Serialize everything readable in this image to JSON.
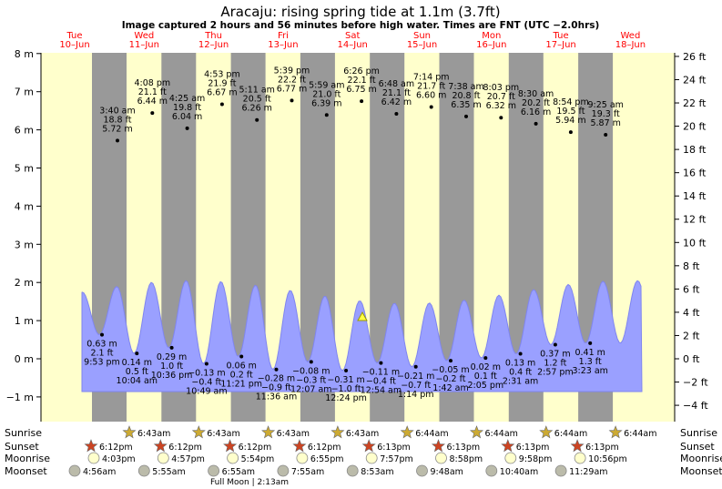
{
  "title": "Aracaju: rising  spring tide at 1.1m (3.7ft)",
  "subtitle": "Image captured 2 hours and 56 minutes before high water. Times are FNT (UTC −2.0hrs)",
  "colors": {
    "day": "#ffffcc",
    "night": "#999999",
    "tide": "#9aa0ff",
    "tide_edge": "#7f85f0",
    "day_label": "#ff0000",
    "current_marker": "#ffff44",
    "sun_star": "#ccaa33",
    "sunset_star": "#cc4422",
    "moonrise": "#ffffcc",
    "moonset": "#bbbbaa"
  },
  "chart_data": {
    "type": "area",
    "ylim_m": [
      -1.0,
      8.0
    ],
    "ylim_ft": [
      -4,
      26
    ],
    "left_ticks_m": [
      -1,
      0,
      1,
      2,
      3,
      4,
      5,
      6,
      7,
      8
    ],
    "right_ticks_ft": [
      -4,
      -2,
      0,
      2,
      4,
      6,
      8,
      10,
      12,
      14,
      16,
      18,
      20,
      22,
      24,
      26
    ],
    "unit_m": "m",
    "unit_ft": "ft",
    "days": [
      {
        "dow": "Tue",
        "date": "10–Jun"
      },
      {
        "dow": "Wed",
        "date": "11–Jun"
      },
      {
        "dow": "Thu",
        "date": "12–Jun"
      },
      {
        "dow": "Fri",
        "date": "13–Jun"
      },
      {
        "dow": "Sat",
        "date": "14–Jun"
      },
      {
        "dow": "Sun",
        "date": "15–Jun"
      },
      {
        "dow": "Mon",
        "date": "16–Jun"
      },
      {
        "dow": "Tue",
        "date": "17–Jun"
      },
      {
        "dow": "Wed",
        "date": "18–Jun"
      }
    ],
    "high_tides": [
      {
        "time": "3:40 am",
        "ft": "18.8 ft",
        "m": "5.72 m",
        "value": 5.72
      },
      {
        "time": "4:08 pm",
        "ft": "21.1 ft",
        "m": "6.44 m",
        "value": 6.44
      },
      {
        "time": "4:25 am",
        "ft": "19.8 ft",
        "m": "6.04 m",
        "value": 6.04
      },
      {
        "time": "4:53 pm",
        "ft": "21.9 ft",
        "m": "6.67 m",
        "value": 6.67
      },
      {
        "time": "5:11 am",
        "ft": "20.5 ft",
        "m": "6.26 m",
        "value": 6.26
      },
      {
        "time": "5:39 pm",
        "ft": "22.2 ft",
        "m": "6.77 m",
        "value": 6.77
      },
      {
        "time": "5:59 am",
        "ft": "21.0 ft",
        "m": "6.39 m",
        "value": 6.39
      },
      {
        "time": "6:26 pm",
        "ft": "22.1 ft",
        "m": "6.75 m",
        "value": 6.75
      },
      {
        "time": "6:48 am",
        "ft": "21.1 ft",
        "m": "6.42 m",
        "value": 6.42
      },
      {
        "time": "7:14 pm",
        "ft": "21.7 ft",
        "m": "6.60 m",
        "value": 6.6
      },
      {
        "time": "7:38 am",
        "ft": "20.8 ft",
        "m": "6.35 m",
        "value": 6.35
      },
      {
        "time": "8:03 pm",
        "ft": "20.7 ft",
        "m": "6.32 m",
        "value": 6.32
      },
      {
        "time": "8:30 am",
        "ft": "20.2 ft",
        "m": "6.16 m",
        "value": 6.16
      },
      {
        "time": "8:54 pm",
        "ft": "19.5 ft",
        "m": "5.94 m",
        "value": 5.94
      },
      {
        "time": "9:25 am",
        "ft": "19.3 ft",
        "m": "5.87 m",
        "value": 5.87
      }
    ],
    "low_tides": [
      {
        "m": "0.63 m",
        "ft": "2.1 ft",
        "time": "9:53 pm",
        "value": 0.63
      },
      {
        "m": "0.14 m",
        "ft": "0.5 ft",
        "time": "10:04 am",
        "value": 0.14
      },
      {
        "m": "0.29 m",
        "ft": "1.0 ft",
        "time": "10:36 pm",
        "value": 0.29
      },
      {
        "m": "−0.13 m",
        "ft": "−0.4 ft",
        "time": "10:49 am",
        "value": -0.13
      },
      {
        "m": "0.06 m",
        "ft": "0.2 ft",
        "time": "11:21 pm",
        "value": 0.06
      },
      {
        "m": "−0.28 m",
        "ft": "−0.9 ft",
        "time": "11:36 am",
        "value": -0.28
      },
      {
        "m": "−0.08 m",
        "ft": "−0.3 ft",
        "time": "12:07 am",
        "value": -0.08
      },
      {
        "m": "−0.31 m",
        "ft": "−1.0 ft",
        "time": "12:24 pm",
        "value": -0.31
      },
      {
        "m": "−0.11 m",
        "ft": "−0.4 ft",
        "time": "12:54 am",
        "value": -0.11
      },
      {
        "m": "−0.21 m",
        "ft": "−0.7 ft",
        "time": "1:14 pm",
        "value": -0.21
      },
      {
        "m": "−0.05 m",
        "ft": "−0.2 ft",
        "time": "1:42 am",
        "value": -0.05
      },
      {
        "m": "0.02 m",
        "ft": "0.1 ft",
        "time": "2:05 pm",
        "value": 0.02
      },
      {
        "m": "0.13 m",
        "ft": "0.4 ft",
        "time": "2:31 am",
        "value": 0.13
      },
      {
        "m": "0.37 m",
        "ft": "1.2 ft",
        "time": "2:57 pm",
        "value": 0.37
      },
      {
        "m": "0.41 m",
        "ft": "1.3 ft",
        "time": "3:23 am",
        "value": 0.41
      }
    ],
    "current_level_m": 1.1
  },
  "astro": {
    "labels": {
      "sunrise": "Sunrise",
      "sunset": "Sunset",
      "moonrise": "Moonrise",
      "moonset": "Moonset"
    },
    "sunrise": [
      "6:43am",
      "6:43am",
      "6:43am",
      "6:43am",
      "6:44am",
      "6:44am",
      "6:44am",
      "6:44am"
    ],
    "sunset": [
      "6:12pm",
      "6:12pm",
      "6:12pm",
      "6:12pm",
      "6:13pm",
      "6:13pm",
      "6:13pm",
      "6:13pm"
    ],
    "moonrise": [
      "4:03pm",
      "4:57pm",
      "5:54pm",
      "6:55pm",
      "7:57pm",
      "8:58pm",
      "9:58pm",
      "10:56pm"
    ],
    "moonset": [
      "4:56am",
      "5:55am",
      "6:55am",
      "7:55am",
      "8:53am",
      "9:48am",
      "10:40am",
      "11:29am"
    ],
    "full_moon": "Full Moon | 2:13am"
  }
}
